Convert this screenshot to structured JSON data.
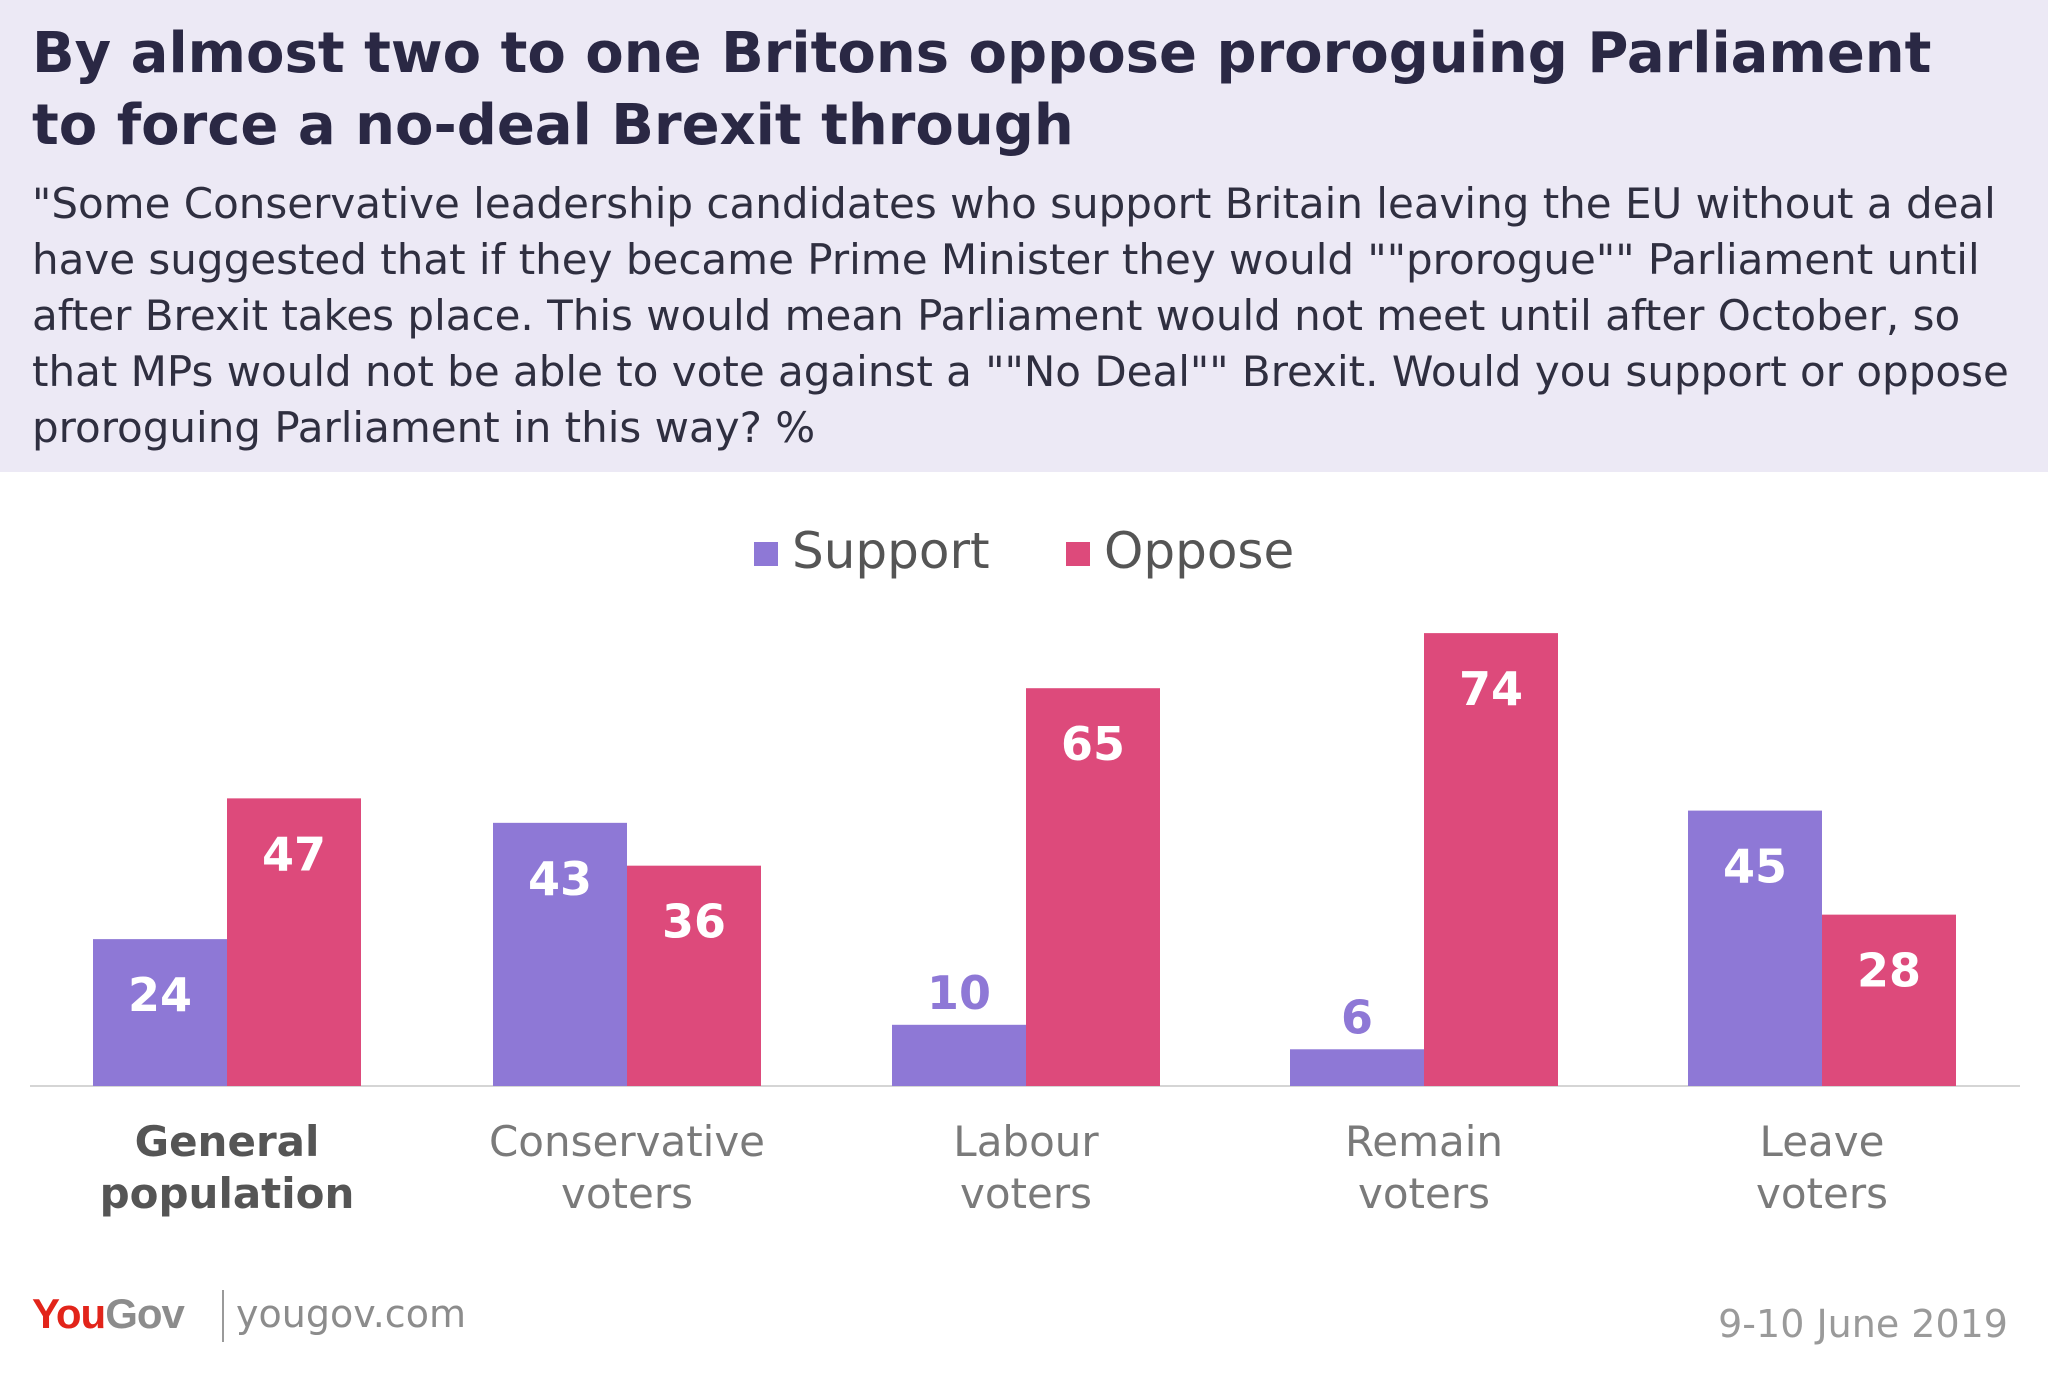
{
  "header": {
    "title": "By almost two to one Britons oppose proroguing Parliament to force a no-deal Brexit through",
    "subtitle": "\"Some Conservative leadership candidates who support Britain leaving the EU without a deal have suggested that if they became Prime Minister they would \"\"prorogue\"\" Parliament until after Brexit takes place. This would mean Parliament would not meet until after October, so that MPs would not be able to vote against a \"\"No Deal\"\" Brexit. Would you support or oppose proroguing Parliament in this way? %"
  },
  "chart_data": {
    "type": "bar",
    "categories": [
      {
        "line1": "General",
        "line2": "population",
        "emphasis": true
      },
      {
        "line1": "Conservative",
        "line2": "voters",
        "emphasis": false
      },
      {
        "line1": "Labour",
        "line2": "voters",
        "emphasis": false
      },
      {
        "line1": "Remain",
        "line2": "voters",
        "emphasis": false
      },
      {
        "line1": "Leave",
        "line2": "voters",
        "emphasis": false
      }
    ],
    "series": [
      {
        "name": "Support",
        "color": "#8e78d6",
        "values": [
          24,
          43,
          10,
          6,
          45
        ]
      },
      {
        "name": "Oppose",
        "color": "#dd4a7b",
        "values": [
          47,
          36,
          65,
          74,
          28
        ]
      }
    ],
    "ylim": [
      0,
      80
    ],
    "grid": false,
    "legend": "top-center",
    "data_labels": true
  },
  "footer": {
    "logo_you": "You",
    "logo_gov": "Gov",
    "site": "yougov.com",
    "date": "9-10 June 2019"
  }
}
